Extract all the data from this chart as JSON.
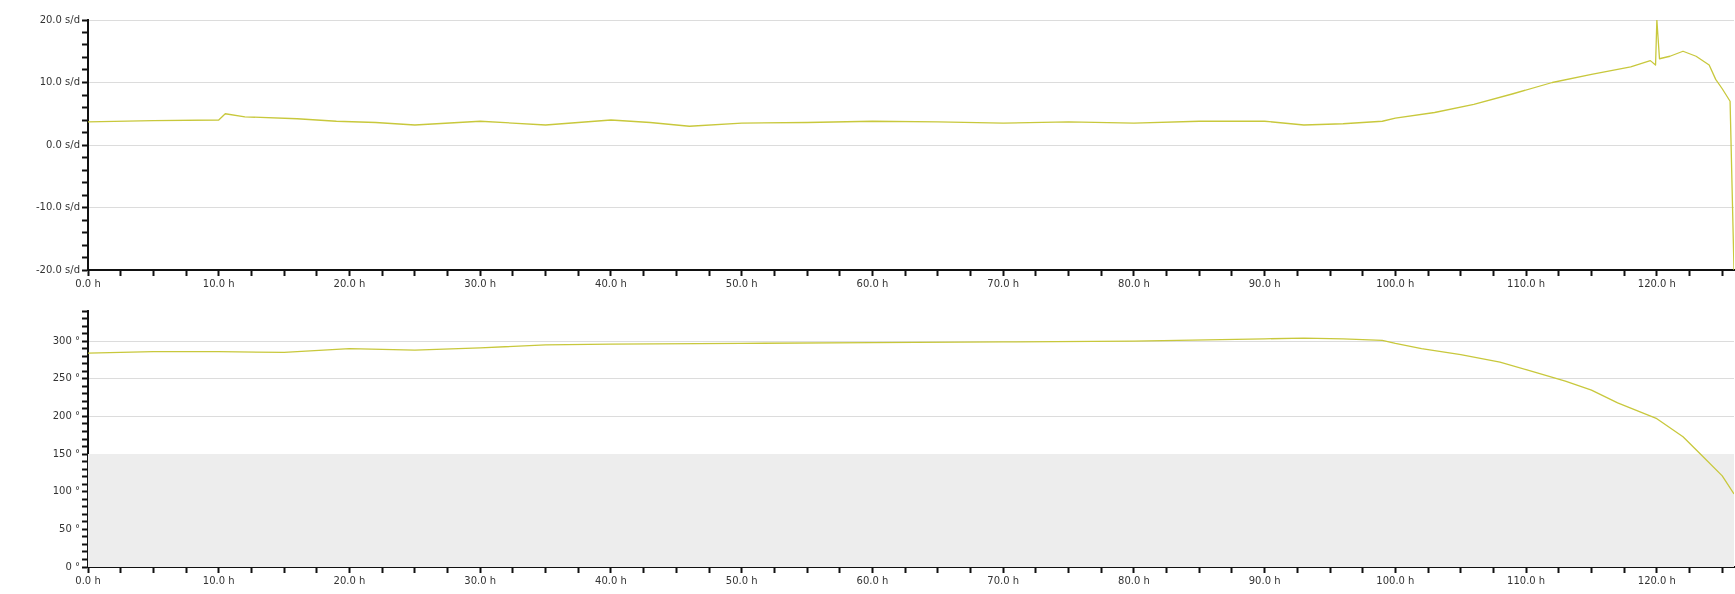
{
  "chart_data": [
    {
      "type": "line",
      "grid": "y",
      "marker": "none",
      "xlim": [
        0,
        125.9
      ],
      "xticks": [
        {
          "value": 0,
          "label": "0.0 h"
        },
        {
          "value": 2.5,
          "label": null
        },
        {
          "value": 5,
          "label": null
        },
        {
          "value": 7.5,
          "label": null
        },
        {
          "value": 10,
          "label": "10.0 h"
        },
        {
          "value": 12.5,
          "label": null
        },
        {
          "value": 15,
          "label": null
        },
        {
          "value": 17.5,
          "label": null
        },
        {
          "value": 20,
          "label": "20.0 h"
        },
        {
          "value": 22.5,
          "label": null
        },
        {
          "value": 25,
          "label": null
        },
        {
          "value": 27.5,
          "label": null
        },
        {
          "value": 30,
          "label": "30.0 h"
        },
        {
          "value": 32.5,
          "label": null
        },
        {
          "value": 35,
          "label": null
        },
        {
          "value": 37.5,
          "label": null
        },
        {
          "value": 40,
          "label": "40.0 h"
        },
        {
          "value": 42.5,
          "label": null
        },
        {
          "value": 45,
          "label": null
        },
        {
          "value": 47.5,
          "label": null
        },
        {
          "value": 50,
          "label": "50.0 h"
        },
        {
          "value": 52.5,
          "label": null
        },
        {
          "value": 55,
          "label": null
        },
        {
          "value": 57.5,
          "label": null
        },
        {
          "value": 60,
          "label": "60.0 h"
        },
        {
          "value": 62.5,
          "label": null
        },
        {
          "value": 65,
          "label": null
        },
        {
          "value": 67.5,
          "label": null
        },
        {
          "value": 70,
          "label": "70.0 h"
        },
        {
          "value": 72.5,
          "label": null
        },
        {
          "value": 75,
          "label": null
        },
        {
          "value": 77.5,
          "label": null
        },
        {
          "value": 80,
          "label": "80.0 h"
        },
        {
          "value": 82.5,
          "label": null
        },
        {
          "value": 85,
          "label": null
        },
        {
          "value": 87.5,
          "label": null
        },
        {
          "value": 90,
          "label": "90.0 h"
        },
        {
          "value": 92.5,
          "label": null
        },
        {
          "value": 95,
          "label": null
        },
        {
          "value": 97.5,
          "label": null
        },
        {
          "value": 100,
          "label": "100.0 h"
        },
        {
          "value": 102.5,
          "label": null
        },
        {
          "value": 105,
          "label": null
        },
        {
          "value": 107.5,
          "label": null
        },
        {
          "value": 110,
          "label": "110.0 h"
        },
        {
          "value": 112.5,
          "label": null
        },
        {
          "value": 115,
          "label": null
        },
        {
          "value": 117.5,
          "label": null
        },
        {
          "value": 120,
          "label": "120.0 h"
        },
        {
          "value": 122.5,
          "label": null
        },
        {
          "value": 125,
          "label": null
        }
      ],
      "ylim": [
        -20,
        20
      ],
      "yticks": [
        {
          "value": -20,
          "label": "-20.0 s/d"
        },
        {
          "value": -18,
          "label": null
        },
        {
          "value": -16,
          "label": null
        },
        {
          "value": -14,
          "label": null
        },
        {
          "value": -12,
          "label": null
        },
        {
          "value": -10,
          "label": "-10.0 s/d"
        },
        {
          "value": -8,
          "label": null
        },
        {
          "value": -6,
          "label": null
        },
        {
          "value": -4,
          "label": null
        },
        {
          "value": -2,
          "label": null
        },
        {
          "value": 0,
          "label": "0.0 s/d"
        },
        {
          "value": 2,
          "label": null
        },
        {
          "value": 4,
          "label": null
        },
        {
          "value": 6,
          "label": null
        },
        {
          "value": 8,
          "label": null
        },
        {
          "value": 10,
          "label": "10.0 s/d"
        },
        {
          "value": 12,
          "label": null
        },
        {
          "value": 14,
          "label": null
        },
        {
          "value": 16,
          "label": null
        },
        {
          "value": 18,
          "label": null
        },
        {
          "value": 20,
          "label": "20.0 s/d"
        }
      ],
      "x": [
        0,
        5,
        10,
        10.5,
        12,
        16,
        19,
        22,
        25,
        30,
        35,
        40,
        43,
        46,
        50,
        55,
        60,
        65,
        70,
        75,
        80,
        85,
        90,
        93,
        96,
        99,
        100,
        103,
        106,
        109,
        112,
        115,
        118,
        119.5,
        119.9,
        120,
        120.2,
        121,
        122,
        123,
        124,
        124.5,
        125,
        125.6,
        125.9
      ],
      "series": [
        {
          "color": "#c8c83c",
          "values": [
            3.7,
            3.9,
            4,
            5,
            4.5,
            4.2,
            3.8,
            3.6,
            3.2,
            3.8,
            3.2,
            4,
            3.6,
            3,
            3.5,
            3.6,
            3.8,
            3.7,
            3.5,
            3.7,
            3.5,
            3.8,
            3.8,
            3.2,
            3.4,
            3.8,
            4.3,
            5.2,
            6.5,
            8.2,
            10,
            11.3,
            12.5,
            13.5,
            12.8,
            20,
            13.8,
            14.2,
            15,
            14.2,
            12.8,
            10.5,
            9,
            7,
            -20
          ]
        }
      ]
    },
    {
      "type": "line",
      "grid": "y",
      "marker": "none",
      "xlim": [
        0,
        125.9
      ],
      "xticks": [
        {
          "value": 0,
          "label": "0.0 h"
        },
        {
          "value": 2.5,
          "label": null
        },
        {
          "value": 5,
          "label": null
        },
        {
          "value": 7.5,
          "label": null
        },
        {
          "value": 10,
          "label": "10.0 h"
        },
        {
          "value": 12.5,
          "label": null
        },
        {
          "value": 15,
          "label": null
        },
        {
          "value": 17.5,
          "label": null
        },
        {
          "value": 20,
          "label": "20.0 h"
        },
        {
          "value": 22.5,
          "label": null
        },
        {
          "value": 25,
          "label": null
        },
        {
          "value": 27.5,
          "label": null
        },
        {
          "value": 30,
          "label": "30.0 h"
        },
        {
          "value": 32.5,
          "label": null
        },
        {
          "value": 35,
          "label": null
        },
        {
          "value": 37.5,
          "label": null
        },
        {
          "value": 40,
          "label": "40.0 h"
        },
        {
          "value": 42.5,
          "label": null
        },
        {
          "value": 45,
          "label": null
        },
        {
          "value": 47.5,
          "label": null
        },
        {
          "value": 50,
          "label": "50.0 h"
        },
        {
          "value": 52.5,
          "label": null
        },
        {
          "value": 55,
          "label": null
        },
        {
          "value": 57.5,
          "label": null
        },
        {
          "value": 60,
          "label": "60.0 h"
        },
        {
          "value": 62.5,
          "label": null
        },
        {
          "value": 65,
          "label": null
        },
        {
          "value": 67.5,
          "label": null
        },
        {
          "value": 70,
          "label": "70.0 h"
        },
        {
          "value": 72.5,
          "label": null
        },
        {
          "value": 75,
          "label": null
        },
        {
          "value": 77.5,
          "label": null
        },
        {
          "value": 80,
          "label": "80.0 h"
        },
        {
          "value": 82.5,
          "label": null
        },
        {
          "value": 85,
          "label": null
        },
        {
          "value": 87.5,
          "label": null
        },
        {
          "value": 90,
          "label": "90.0 h"
        },
        {
          "value": 92.5,
          "label": null
        },
        {
          "value": 95,
          "label": null
        },
        {
          "value": 97.5,
          "label": null
        },
        {
          "value": 100,
          "label": "100.0 h"
        },
        {
          "value": 102.5,
          "label": null
        },
        {
          "value": 105,
          "label": null
        },
        {
          "value": 107.5,
          "label": null
        },
        {
          "value": 110,
          "label": "110.0 h"
        },
        {
          "value": 112.5,
          "label": null
        },
        {
          "value": 115,
          "label": null
        },
        {
          "value": 117.5,
          "label": null
        },
        {
          "value": 120,
          "label": "120.0 h"
        },
        {
          "value": 122.5,
          "label": null
        },
        {
          "value": 125,
          "label": null
        }
      ],
      "ylim": [
        0,
        340
      ],
      "yticks": [
        {
          "value": 0,
          "label": "0 °"
        },
        {
          "value": 10,
          "label": null
        },
        {
          "value": 20,
          "label": null
        },
        {
          "value": 30,
          "label": null
        },
        {
          "value": 40,
          "label": null
        },
        {
          "value": 50,
          "label": "50 °"
        },
        {
          "value": 60,
          "label": null
        },
        {
          "value": 70,
          "label": null
        },
        {
          "value": 80,
          "label": null
        },
        {
          "value": 90,
          "label": null
        },
        {
          "value": 100,
          "label": "100 °"
        },
        {
          "value": 110,
          "label": null
        },
        {
          "value": 120,
          "label": null
        },
        {
          "value": 130,
          "label": null
        },
        {
          "value": 140,
          "label": null
        },
        {
          "value": 150,
          "label": "150 °"
        },
        {
          "value": 160,
          "label": null
        },
        {
          "value": 170,
          "label": null
        },
        {
          "value": 180,
          "label": null
        },
        {
          "value": 190,
          "label": null
        },
        {
          "value": 200,
          "label": "200 °"
        },
        {
          "value": 210,
          "label": null
        },
        {
          "value": 220,
          "label": null
        },
        {
          "value": 230,
          "label": null
        },
        {
          "value": 240,
          "label": null
        },
        {
          "value": 250,
          "label": "250 °"
        },
        {
          "value": 260,
          "label": null
        },
        {
          "value": 270,
          "label": null
        },
        {
          "value": 280,
          "label": null
        },
        {
          "value": 290,
          "label": null
        },
        {
          "value": 300,
          "label": "300 °"
        },
        {
          "value": 310,
          "label": null
        },
        {
          "value": 320,
          "label": null
        },
        {
          "value": 330,
          "label": null
        },
        {
          "value": 340,
          "label": null
        }
      ],
      "bands": [
        {
          "axis": "y",
          "from": 0,
          "to": 150,
          "color": "#ededed"
        }
      ],
      "x": [
        0,
        5,
        10,
        15,
        20,
        25,
        30,
        35,
        40,
        50,
        60,
        70,
        80,
        90,
        93,
        96,
        99,
        100,
        102,
        105,
        108,
        110,
        113,
        115,
        117,
        120,
        122,
        123.5,
        125,
        125.9
      ],
      "series": [
        {
          "color": "#c8c83c",
          "values": [
            284,
            286,
            286,
            285,
            290,
            288,
            291,
            295,
            296,
            297,
            298,
            299,
            300,
            303,
            304,
            303,
            301,
            297,
            290,
            282,
            272,
            262,
            247,
            235,
            218,
            197,
            173,
            147,
            121,
            97
          ]
        }
      ]
    }
  ]
}
